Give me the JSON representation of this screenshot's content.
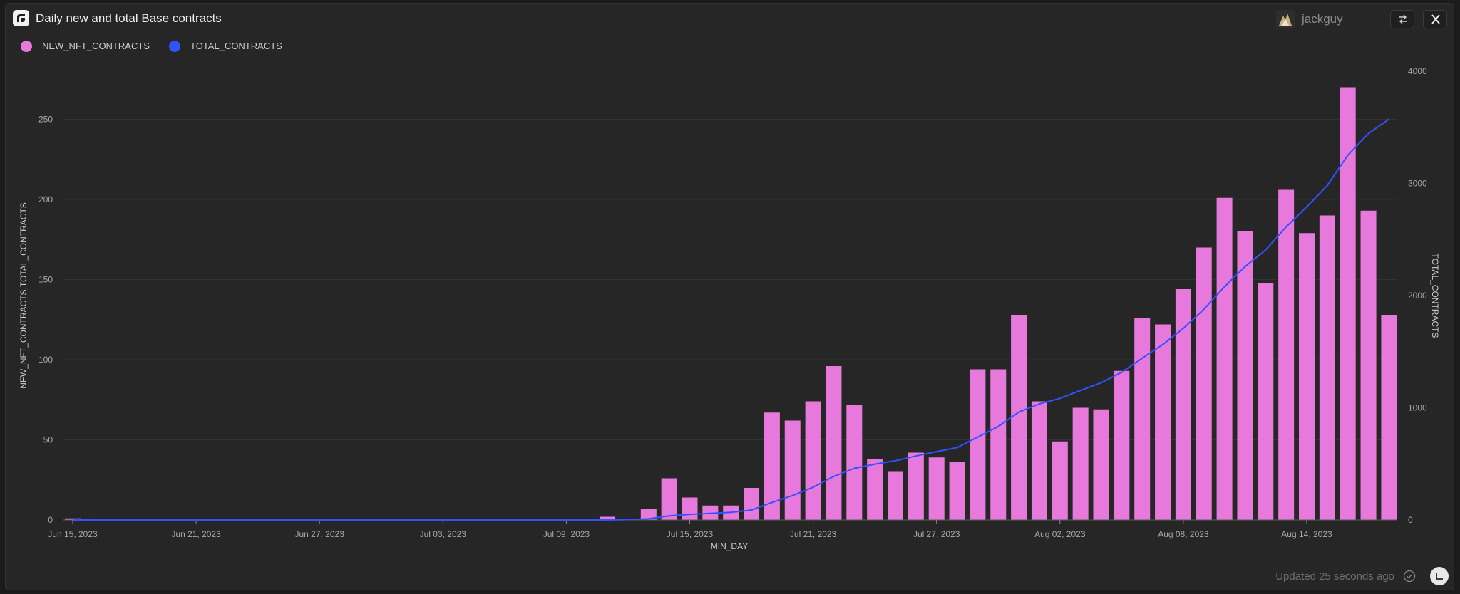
{
  "header": {
    "title": "Daily new and total Base contracts",
    "username": "jackguy"
  },
  "icons": {
    "logo": "app-logo-icon",
    "swap": "swap-arrows-icon",
    "close": "close-icon",
    "check": "check-circle-icon",
    "history": "history-icon"
  },
  "footer": {
    "updated_text": "Updated 25 seconds ago"
  },
  "colors": {
    "bar": "#e879dc",
    "line": "#3352ff",
    "background": "#262626"
  },
  "chart_data": {
    "type": "bar",
    "title": "Daily new and total Base contracts",
    "xlabel": "MIN_DAY",
    "ylabel": "NEW_NFT_CONTRACTS,TOTAL_CONTRACTS",
    "y2label": "TOTAL_CONTRACTS",
    "legend_position": "top-left",
    "grid": true,
    "ylim": [
      0,
      280
    ],
    "y2lim": [
      0,
      4000
    ],
    "yticks": [
      0,
      50,
      100,
      150,
      200,
      250
    ],
    "y2ticks": [
      0,
      1000,
      2000,
      3000,
      4000
    ],
    "x_tick_labels": [
      "Jun 15, 2023",
      "Jun 21, 2023",
      "Jun 27, 2023",
      "Jul 03, 2023",
      "Jul 09, 2023",
      "Jul 15, 2023",
      "Jul 21, 2023",
      "Jul 27, 2023",
      "Aug 02, 2023",
      "Aug 08, 2023",
      "Aug 14, 2023"
    ],
    "x_tick_every": 6,
    "start_date": "Jun 15, 2023",
    "series": [
      {
        "name": "NEW_NFT_CONTRACTS",
        "type": "bar",
        "axis": "left",
        "values": [
          1,
          0,
          0,
          0,
          0,
          0,
          0,
          0,
          0,
          0,
          0,
          0,
          0,
          0,
          0,
          0,
          0,
          0,
          0,
          0,
          0,
          0,
          0,
          0,
          0,
          0,
          2,
          0,
          7,
          26,
          14,
          9,
          9,
          20,
          67,
          62,
          74,
          96,
          72,
          38,
          30,
          42,
          39,
          36,
          94,
          94,
          128,
          74,
          49,
          70,
          69,
          93,
          126,
          122,
          144,
          170,
          201,
          180,
          148,
          206,
          179,
          190,
          270,
          193,
          128
        ]
      },
      {
        "name": "TOTAL_CONTRACTS",
        "type": "line",
        "axis": "right",
        "values": [
          0,
          0,
          0,
          0,
          0,
          0,
          0,
          0,
          0,
          0,
          0,
          0,
          0,
          0,
          0,
          0,
          0,
          0,
          0,
          0,
          0,
          0,
          0,
          0,
          0,
          0,
          0,
          3,
          10,
          36,
          50,
          59,
          68,
          88,
          156,
          218,
          292,
          388,
          460,
          498,
          528,
          570,
          609,
          645,
          739,
          833,
          961,
          1035,
          1084,
          1154,
          1223,
          1316,
          1442,
          1564,
          1708,
          1878,
          2079,
          2259,
          2407,
          2613,
          2792,
          2982,
          3252,
          3445,
          3573
        ]
      }
    ]
  }
}
